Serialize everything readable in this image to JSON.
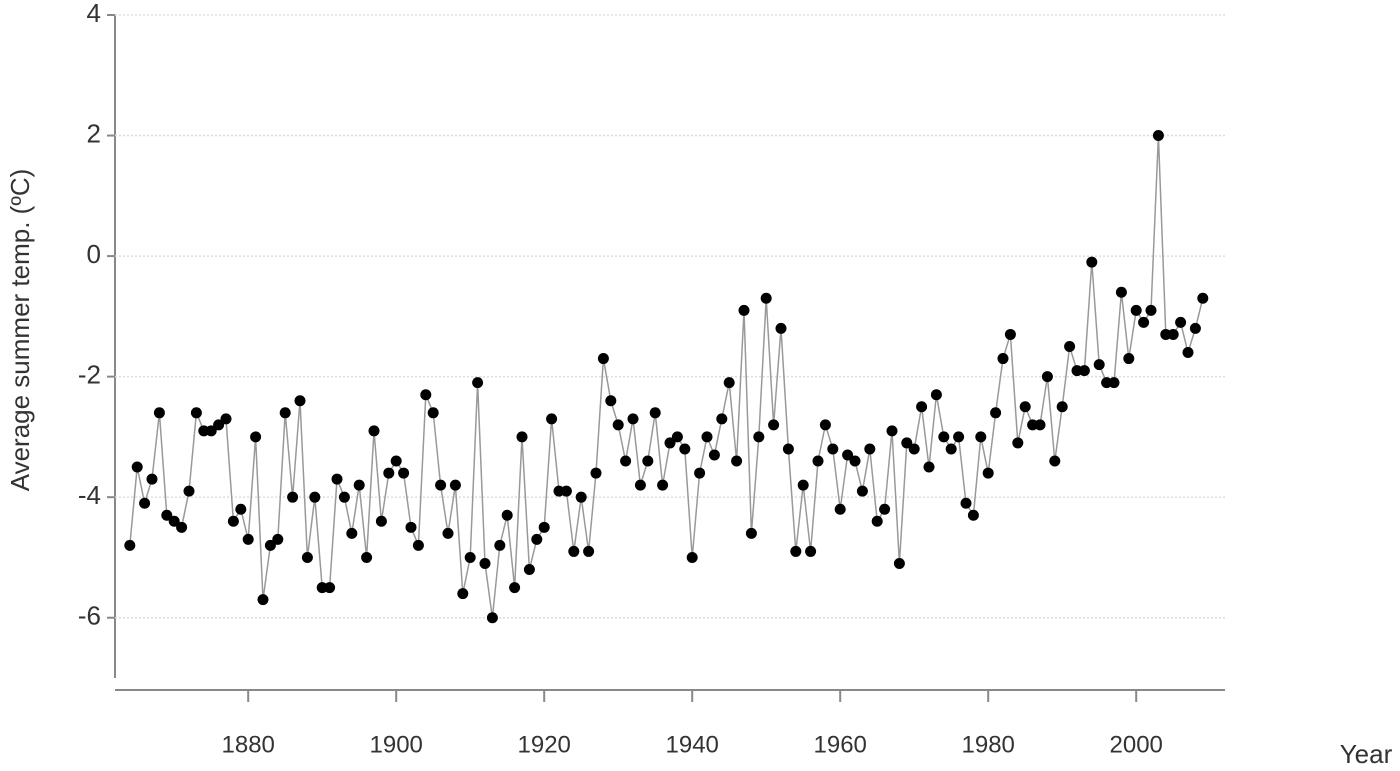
{
  "chart_data": {
    "type": "line",
    "y_label": "Average summer temp. (ºC)",
    "x_label": "Year",
    "x": [
      1864,
      1865,
      1866,
      1867,
      1868,
      1869,
      1870,
      1871,
      1872,
      1873,
      1874,
      1875,
      1876,
      1877,
      1878,
      1879,
      1880,
      1881,
      1882,
      1883,
      1884,
      1885,
      1886,
      1887,
      1888,
      1889,
      1890,
      1891,
      1892,
      1893,
      1894,
      1895,
      1896,
      1897,
      1898,
      1899,
      1900,
      1901,
      1902,
      1903,
      1904,
      1905,
      1906,
      1907,
      1908,
      1909,
      1910,
      1911,
      1912,
      1913,
      1914,
      1915,
      1916,
      1917,
      1918,
      1919,
      1920,
      1921,
      1922,
      1923,
      1924,
      1925,
      1926,
      1927,
      1928,
      1929,
      1930,
      1931,
      1932,
      1933,
      1934,
      1935,
      1936,
      1937,
      1938,
      1939,
      1940,
      1941,
      1942,
      1943,
      1944,
      1945,
      1946,
      1947,
      1948,
      1949,
      1950,
      1951,
      1952,
      1953,
      1954,
      1955,
      1956,
      1957,
      1958,
      1959,
      1960,
      1961,
      1962,
      1963,
      1964,
      1965,
      1966,
      1967,
      1968,
      1969,
      1970,
      1971,
      1972,
      1973,
      1974,
      1975,
      1976,
      1977,
      1978,
      1979,
      1980,
      1981,
      1982,
      1983,
      1984,
      1985,
      1986,
      1987,
      1988,
      1989,
      1990,
      1991,
      1992,
      1993,
      1994,
      1995,
      1996,
      1997,
      1998,
      1999,
      2000,
      2001,
      2002,
      2003,
      2004,
      2005,
      2006,
      2007,
      2008,
      2009
    ],
    "values": [
      -4.8,
      -3.5,
      -4.1,
      -3.7,
      -2.6,
      -4.3,
      -4.4,
      -4.5,
      -3.9,
      -2.6,
      -2.9,
      -2.9,
      -2.8,
      -2.7,
      -4.4,
      -4.2,
      -4.7,
      -3.0,
      -5.7,
      -4.8,
      -4.7,
      -2.6,
      -4.0,
      -2.4,
      -5.0,
      -4.0,
      -5.5,
      -5.5,
      -3.7,
      -4.0,
      -4.6,
      -3.8,
      -5.0,
      -2.9,
      -4.4,
      -3.6,
      -3.4,
      -3.6,
      -4.5,
      -4.8,
      -2.3,
      -2.6,
      -3.8,
      -4.6,
      -3.8,
      -5.6,
      -5.0,
      -2.1,
      -5.1,
      -6.0,
      -4.8,
      -4.3,
      -5.5,
      -3.0,
      -5.2,
      -4.7,
      -4.5,
      -2.7,
      -3.9,
      -3.9,
      -4.9,
      -4.0,
      -4.9,
      -3.6,
      -1.7,
      -2.4,
      -2.8,
      -3.4,
      -2.7,
      -3.8,
      -3.4,
      -2.6,
      -3.8,
      -3.1,
      -3.0,
      -3.2,
      -5.0,
      -3.6,
      -3.0,
      -3.3,
      -2.7,
      -2.1,
      -3.4,
      -0.9,
      -4.6,
      -3.0,
      -0.7,
      -2.8,
      -1.2,
      -3.2,
      -4.9,
      -3.8,
      -4.9,
      -3.4,
      -2.8,
      -3.2,
      -4.2,
      -3.3,
      -3.4,
      -3.9,
      -3.2,
      -4.4,
      -4.2,
      -2.9,
      -5.1,
      -3.1,
      -3.2,
      -2.5,
      -3.5,
      -2.3,
      -3.0,
      -3.2,
      -3.0,
      -4.1,
      -4.3,
      -3.0,
      -3.6,
      -2.6,
      -1.7,
      -1.3,
      -3.1,
      -2.5,
      -2.8,
      -2.8,
      -2.0,
      -3.4,
      -2.5,
      -1.5,
      -1.9,
      -1.9,
      -0.1,
      -1.8,
      -2.1,
      -2.1,
      -0.6,
      -1.7,
      -0.9,
      -1.1,
      -0.9,
      2.0,
      -1.3,
      -1.3,
      -1.1,
      -1.6,
      -1.2,
      -0.7
    ],
    "line_color": "#999999",
    "marker_color": "#000000",
    "xlim": [
      1862,
      2012
    ],
    "xticks": [
      1880,
      1900,
      1920,
      1940,
      1960,
      1980,
      2000
    ],
    "ylim": [
      -7,
      4
    ],
    "yticks": [
      -6,
      -4,
      -2,
      0,
      2,
      4
    ],
    "grid": true
  }
}
